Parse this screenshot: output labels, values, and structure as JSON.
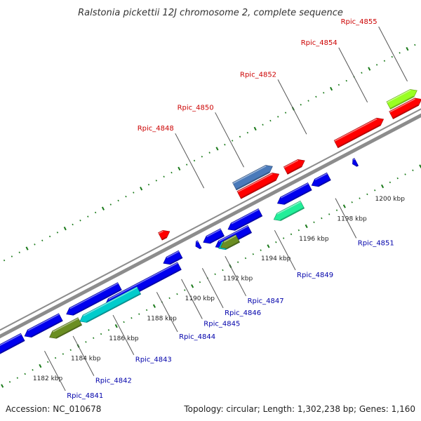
{
  "title": "Ralstonia pickettii 12J chromosome 2, complete sequence",
  "footer": {
    "accession": "Accession: NC_010678",
    "summary": "Topology: circular; Length: 1,302,238 bp; Genes: 1,160"
  },
  "colors": {
    "backbone": "#8c8c8c",
    "tick_major": "#1a7a1a",
    "tick_minor": "#1a7a1a",
    "forward_label": "#cc0000",
    "reverse_label": "#0000aa",
    "leader": "#555555"
  },
  "scale_ticks": [
    {
      "kbp": 1182,
      "label": "1182 kbp"
    },
    {
      "kbp": 1184,
      "label": "1184 kbp"
    },
    {
      "kbp": 1186,
      "label": "1186 kbp"
    },
    {
      "kbp": 1188,
      "label": "1188 kbp"
    },
    {
      "kbp": 1190,
      "label": "1190 kbp"
    },
    {
      "kbp": 1192,
      "label": "1192 kbp"
    },
    {
      "kbp": 1194,
      "label": "1194 kbp"
    },
    {
      "kbp": 1196,
      "label": "1196 kbp"
    },
    {
      "kbp": 1198,
      "label": "1198 kbp"
    },
    {
      "kbp": 1200,
      "label": "1200 kbp"
    }
  ],
  "forward_features": [
    {
      "start": 1189.75,
      "end": 1190.25,
      "color": "#ff0000"
    },
    {
      "start": 1193.9,
      "end": 1196.0,
      "color": "#ff0000"
    },
    {
      "start": 1196.35,
      "end": 1197.35,
      "color": "#ff0000"
    },
    {
      "start": 1199.0,
      "end": 1201.5,
      "color": "#ff0000"
    },
    {
      "start": 1201.9,
      "end": 1203.5,
      "color": "#ff0000"
    },
    {
      "start": 1193.9,
      "end": 1195.9,
      "color": "#4a7aba"
    },
    {
      "start": 1202.0,
      "end": 1203.5,
      "color": "#99ff22"
    }
  ],
  "reverse_features": [
    {
      "start": 1180.0,
      "end": 1181.9,
      "color": "#0000ee"
    },
    {
      "start": 1182.0,
      "end": 1183.9,
      "color": "#0000ee"
    },
    {
      "start": 1184.2,
      "end": 1187.0,
      "color": "#0000ee"
    },
    {
      "start": 1186.0,
      "end": 1189.9,
      "color": "#0000ee"
    },
    {
      "start": 1189.3,
      "end": 1190.2,
      "color": "#0000ee"
    },
    {
      "start": 1191.0,
      "end": 1191.2,
      "color": "#0000ee"
    },
    {
      "start": 1191.4,
      "end": 1192.4,
      "color": "#0000ee"
    },
    {
      "start": 1191.8,
      "end": 1193.6,
      "color": "#0000ee"
    },
    {
      "start": 1192.7,
      "end": 1194.4,
      "color": "#0000ee"
    },
    {
      "start": 1195.3,
      "end": 1197.0,
      "color": "#0000ee"
    },
    {
      "start": 1197.1,
      "end": 1198.0,
      "color": "#0000ee"
    },
    {
      "start": 1199.25,
      "end": 1199.45,
      "color": "#0000ee"
    },
    {
      "start": 1183.0,
      "end": 1184.6,
      "color": "#6b8e23"
    },
    {
      "start": 1184.6,
      "end": 1187.7,
      "color": "#00cccc"
    },
    {
      "start": 1191.9,
      "end": 1192.9,
      "color": "#00cccc"
    },
    {
      "start": 1192.0,
      "end": 1192.9,
      "color": "#6b8e23"
    },
    {
      "start": 1194.8,
      "end": 1196.3,
      "color": "#22ee99"
    }
  ],
  "forward_labels": [
    {
      "name": "Rpic_4848",
      "kbp": 1192.6
    },
    {
      "name": "Rpic_4850",
      "kbp": 1194.7
    },
    {
      "name": "Rpic_4852",
      "kbp": 1198.0
    },
    {
      "name": "Rpic_4854",
      "kbp": 1201.2
    },
    {
      "name": "Rpic_4855",
      "kbp": 1203.3
    }
  ],
  "reverse_labels": [
    {
      "name": "Rpic_4841",
      "kbp": 1182.5
    },
    {
      "name": "Rpic_4842",
      "kbp": 1184.0
    },
    {
      "name": "Rpic_4843",
      "kbp": 1186.1
    },
    {
      "name": "Rpic_4844",
      "kbp": 1188.4
    },
    {
      "name": "Rpic_4845",
      "kbp": 1189.7
    },
    {
      "name": "Rpic_4846",
      "kbp": 1190.8
    },
    {
      "name": "Rpic_4847",
      "kbp": 1192.0
    },
    {
      "name": "Rpic_4849",
      "kbp": 1194.6
    },
    {
      "name": "Rpic_4851",
      "kbp": 1197.8
    }
  ]
}
